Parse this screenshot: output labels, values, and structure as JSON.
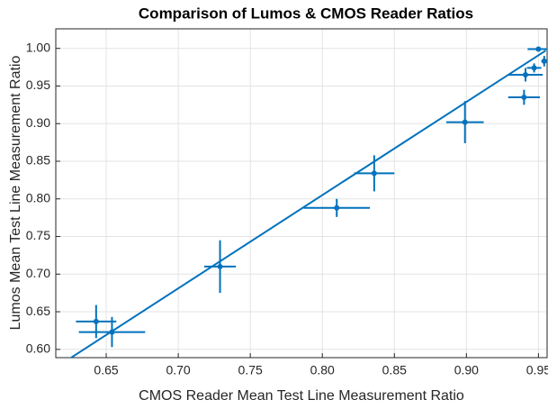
{
  "chart_data": {
    "type": "errorbar-scatter",
    "title": "Comparison of Lumos & CMOS Reader Ratios",
    "x_label": "CMOS Reader Mean Test Line Measurement Ratio",
    "y_label": "Lumos Mean Test Line Measurement Ratio",
    "color": "#0072bd",
    "x": [
      0.643,
      0.654,
      0.729,
      0.81,
      0.836,
      0.899,
      0.94,
      0.941,
      0.947,
      0.95,
      0.954
    ],
    "values": [
      0.637,
      0.623,
      0.71,
      0.788,
      0.834,
      0.902,
      0.935,
      0.965,
      0.974,
      0.999,
      0.983
    ],
    "xerr": [
      0.014,
      0.023,
      0.011,
      0.023,
      0.014,
      0.013,
      0.011,
      0.012,
      0.005,
      0.0075,
      0.002
    ],
    "yerr": [
      0.022,
      0.02,
      0.035,
      0.012,
      0.024,
      0.028,
      0.01,
      0.009,
      0.006,
      0.002,
      0.007
    ],
    "fit_line": {
      "x": [
        0.62,
        0.955
      ],
      "y": [
        0.582,
        0.997
      ]
    },
    "xlim": [
      0.615,
      0.956
    ],
    "ylim": [
      0.589,
      1.026
    ],
    "xticks": [
      0.65,
      {
        "value": 0.7,
        "label": "0.70"
      },
      0.75,
      {
        "value": 0.8,
        "label": "0.80"
      },
      0.85,
      {
        "value": 0.9,
        "label": "0.90"
      },
      0.95
    ],
    "yticks": [
      {
        "value": 0.6,
        "label": "0.60"
      },
      0.65,
      {
        "value": 0.7,
        "label": "0.70"
      },
      0.75,
      {
        "value": 0.8,
        "label": "0.80"
      },
      0.85,
      {
        "value": 0.9,
        "label": "0.90"
      },
      0.95,
      {
        "value": 1.0,
        "label": "1.00"
      }
    ],
    "grid": true
  }
}
